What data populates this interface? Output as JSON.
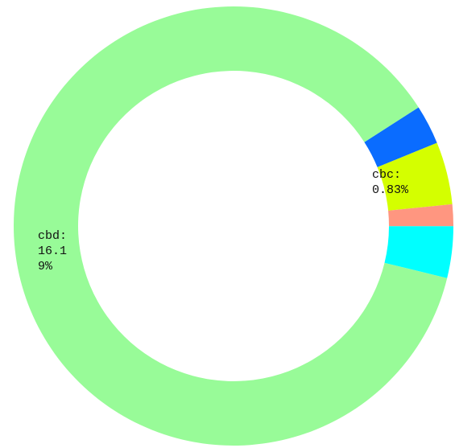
{
  "chart_data": {
    "type": "donut",
    "values": [
      2.9,
      4.6,
      1.6,
      3.8,
      87.1
    ],
    "colors": [
      "#0a6cff",
      "#d4ff00",
      "#ff9680",
      "#00ffff",
      "#98fb98"
    ],
    "annotations": [
      "cbc: 0.83%",
      "cbd: 16.19%"
    ]
  }
}
